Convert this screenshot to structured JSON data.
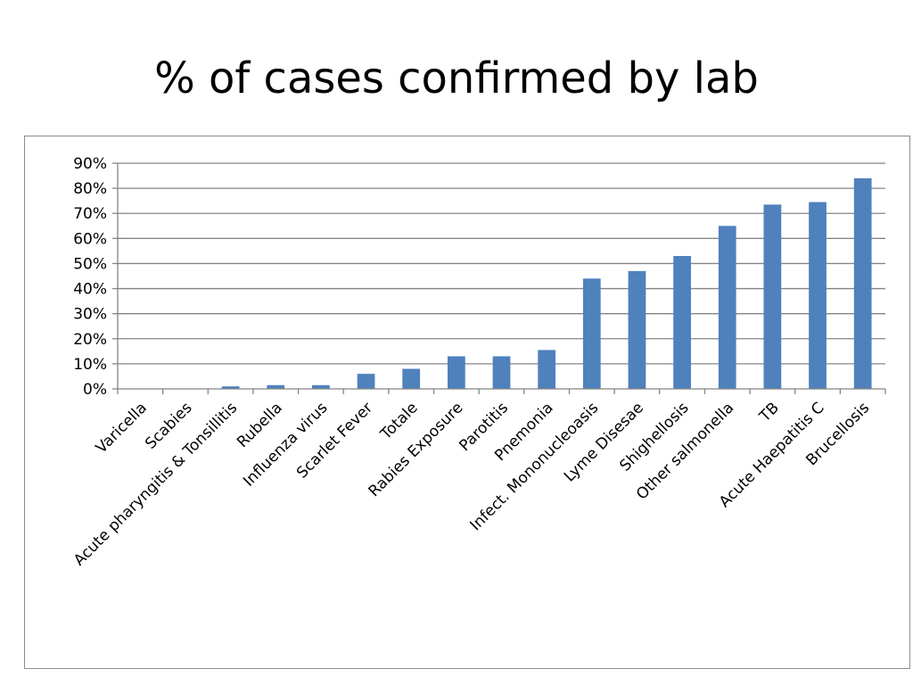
{
  "slide": {
    "title": "% of cases confirmed by lab"
  },
  "colors": {
    "bar": "#4f81bd",
    "gridline": "#858585",
    "axis": "#858585",
    "frame": "#8c8c8c"
  },
  "chart_data": {
    "type": "bar",
    "title": "",
    "xlabel": "",
    "ylabel": "",
    "ylim": [
      0,
      90
    ],
    "y_tick_step": 10,
    "y_tick_format": "percent",
    "grid": true,
    "legend": "none",
    "categories": [
      "Varicella",
      "Scabies",
      "Acute pharyngitis & Tonsillitis",
      "Rubella",
      "Influenza virus",
      "Scarlet Fever",
      "Totale",
      "Rabies Exposure",
      "Parotitis",
      "Pnemonia",
      "Infect. Mononucleoasis",
      "Lyme Disesae",
      "Shighellosis",
      "Other salmonella",
      "TB",
      "Acute Haepatitis C",
      "Brucellosis"
    ],
    "values": [
      0,
      0,
      1,
      1.5,
      1.5,
      6,
      8,
      13,
      13,
      15.5,
      44,
      47,
      53,
      65,
      73.5,
      74.5,
      84
    ]
  }
}
